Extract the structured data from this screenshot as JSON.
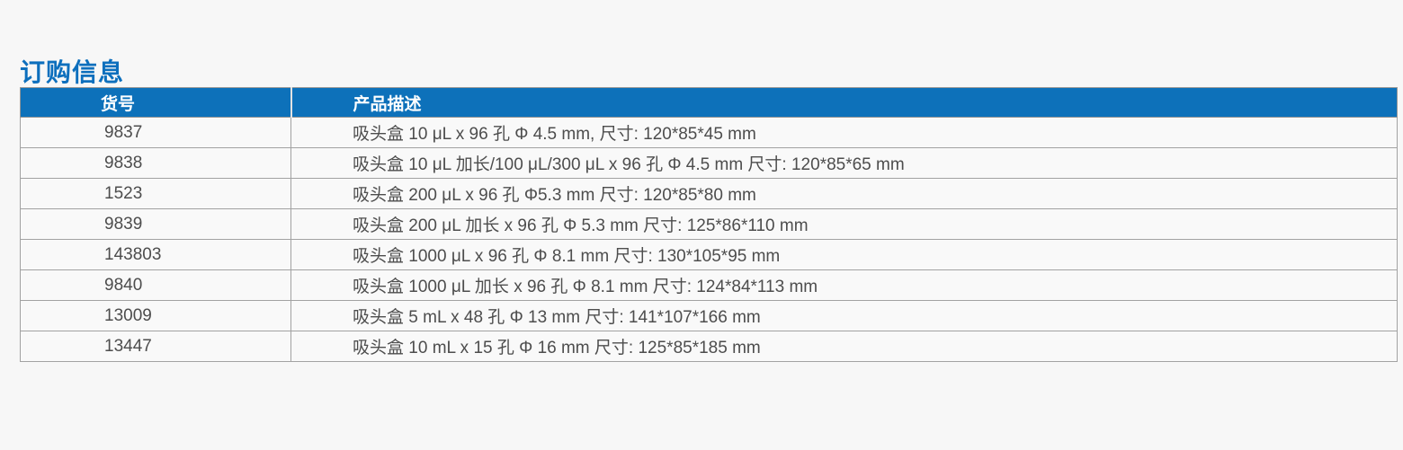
{
  "page": {
    "title": "订购信息"
  },
  "table": {
    "columns": [
      {
        "key": "sku",
        "label": "货号"
      },
      {
        "key": "desc",
        "label": "产品描述"
      }
    ],
    "rows": [
      {
        "sku": "9837",
        "desc": "吸头盒 10 μL x 96 孔 Φ 4.5 mm, 尺寸: 120*85*45 mm"
      },
      {
        "sku": "9838",
        "desc": "吸头盒 10 μL 加长/100 μL/300 μL x 96 孔 Φ 4.5 mm 尺寸: 120*85*65 mm"
      },
      {
        "sku": "1523",
        "desc": "吸头盒 200 μL x 96 孔 Φ5.3 mm 尺寸: 120*85*80 mm"
      },
      {
        "sku": "9839",
        "desc": "吸头盒 200 μL 加长 x 96 孔 Φ 5.3 mm 尺寸: 125*86*110 mm"
      },
      {
        "sku": "143803",
        "desc": "吸头盒 1000 μL x 96 孔 Φ 8.1 mm 尺寸: 130*105*95 mm"
      },
      {
        "sku": "9840",
        "desc": "吸头盒 1000 μL 加长 x 96 孔 Φ 8.1 mm 尺寸: 124*84*113 mm"
      },
      {
        "sku": "13009",
        "desc": "吸头盒 5 mL x 48 孔 Φ 13 mm 尺寸: 141*107*166 mm"
      },
      {
        "sku": "13447",
        "desc": "吸头盒 10 mL x 15 孔 Φ 16 mm 尺寸: 125*85*185 mm"
      }
    ]
  },
  "colors": {
    "accent_blue": "#0d71ba",
    "title_blue": "#0d6fbd",
    "header_text": "#ffffff",
    "body_text": "#4d4d4d",
    "border_gray": "#a2a2a2",
    "page_background": "#f7f7f7",
    "row_background": "#f9f9f9"
  }
}
